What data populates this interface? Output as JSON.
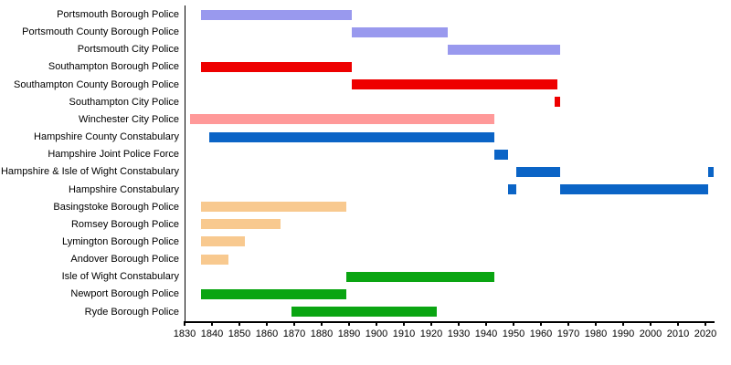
{
  "chart_data": {
    "type": "bar",
    "variant": "horizontal-timeline-gantt",
    "title": "",
    "legend": "none",
    "grid": false,
    "background_color": "#ffffff",
    "axis_color": "#000000",
    "text_color": "#000000",
    "x_axis": {
      "min": 1830,
      "max": 2023,
      "tick_step": 10,
      "ticks": [
        1830,
        1840,
        1850,
        1860,
        1870,
        1880,
        1890,
        1900,
        1910,
        1920,
        1930,
        1940,
        1950,
        1960,
        1970,
        1980,
        1990,
        2000,
        2010,
        2020
      ],
      "tick_labels": [
        "1830",
        "1840",
        "1850",
        "1860",
        "1870",
        "1880",
        "1890",
        "1900",
        "1910",
        "1920",
        "1930",
        "1940",
        "1950",
        "1960",
        "1970",
        "1980",
        "1990",
        "2000",
        "2010",
        "2020"
      ]
    },
    "rows": [
      {
        "label": "Portsmouth Borough Police",
        "color": "#9999ee",
        "bars": [
          {
            "start": 1836,
            "end": 1891
          }
        ]
      },
      {
        "label": "Portsmouth County Borough Police",
        "color": "#9999ee",
        "bars": [
          {
            "start": 1891,
            "end": 1926
          }
        ]
      },
      {
        "label": "Portsmouth City Police",
        "color": "#9999ee",
        "bars": [
          {
            "start": 1926,
            "end": 1967
          }
        ]
      },
      {
        "label": "Southampton Borough Police",
        "color": "#ee0000",
        "bars": [
          {
            "start": 1836,
            "end": 1891
          }
        ]
      },
      {
        "label": "Southampton County Borough Police",
        "color": "#ee0000",
        "bars": [
          {
            "start": 1891,
            "end": 1966
          }
        ]
      },
      {
        "label": "Southampton City Police",
        "color": "#ee0000",
        "bars": [
          {
            "start": 1965,
            "end": 1967
          }
        ]
      },
      {
        "label": "Winchester City Police",
        "color": "#ff9999",
        "bars": [
          {
            "start": 1832,
            "end": 1943
          }
        ]
      },
      {
        "label": "Hampshire County Constabulary",
        "color": "#0b64c6",
        "bars": [
          {
            "start": 1839,
            "end": 1943
          }
        ]
      },
      {
        "label": "Hampshire Joint Police Force",
        "color": "#0b64c6",
        "bars": [
          {
            "start": 1943,
            "end": 1948
          }
        ]
      },
      {
        "label": "Hampshire & Isle of Wight Constabulary",
        "color": "#0b64c6",
        "bars": [
          {
            "start": 1951,
            "end": 1967
          },
          {
            "start": 2021,
            "end": 2023
          }
        ]
      },
      {
        "label": "Hampshire Constabulary",
        "color": "#0b64c6",
        "bars": [
          {
            "start": 1948,
            "end": 1951
          },
          {
            "start": 1967,
            "end": 2021
          }
        ]
      },
      {
        "label": "Basingstoke Borough Police",
        "color": "#f8c98f",
        "bars": [
          {
            "start": 1836,
            "end": 1889
          }
        ]
      },
      {
        "label": "Romsey Borough Police",
        "color": "#f8c98f",
        "bars": [
          {
            "start": 1836,
            "end": 1865
          }
        ]
      },
      {
        "label": "Lymington Borough Police",
        "color": "#f8c98f",
        "bars": [
          {
            "start": 1836,
            "end": 1852
          }
        ]
      },
      {
        "label": "Andover Borough Police",
        "color": "#f8c98f",
        "bars": [
          {
            "start": 1836,
            "end": 1846
          }
        ]
      },
      {
        "label": "Isle of Wight Constabulary",
        "color": "#0aa512",
        "bars": [
          {
            "start": 1889,
            "end": 1943
          }
        ]
      },
      {
        "label": "Newport Borough Police",
        "color": "#0aa512",
        "bars": [
          {
            "start": 1836,
            "end": 1889
          }
        ]
      },
      {
        "label": "Ryde Borough Police",
        "color": "#0aa512",
        "bars": [
          {
            "start": 1869,
            "end": 1922
          }
        ]
      }
    ]
  }
}
